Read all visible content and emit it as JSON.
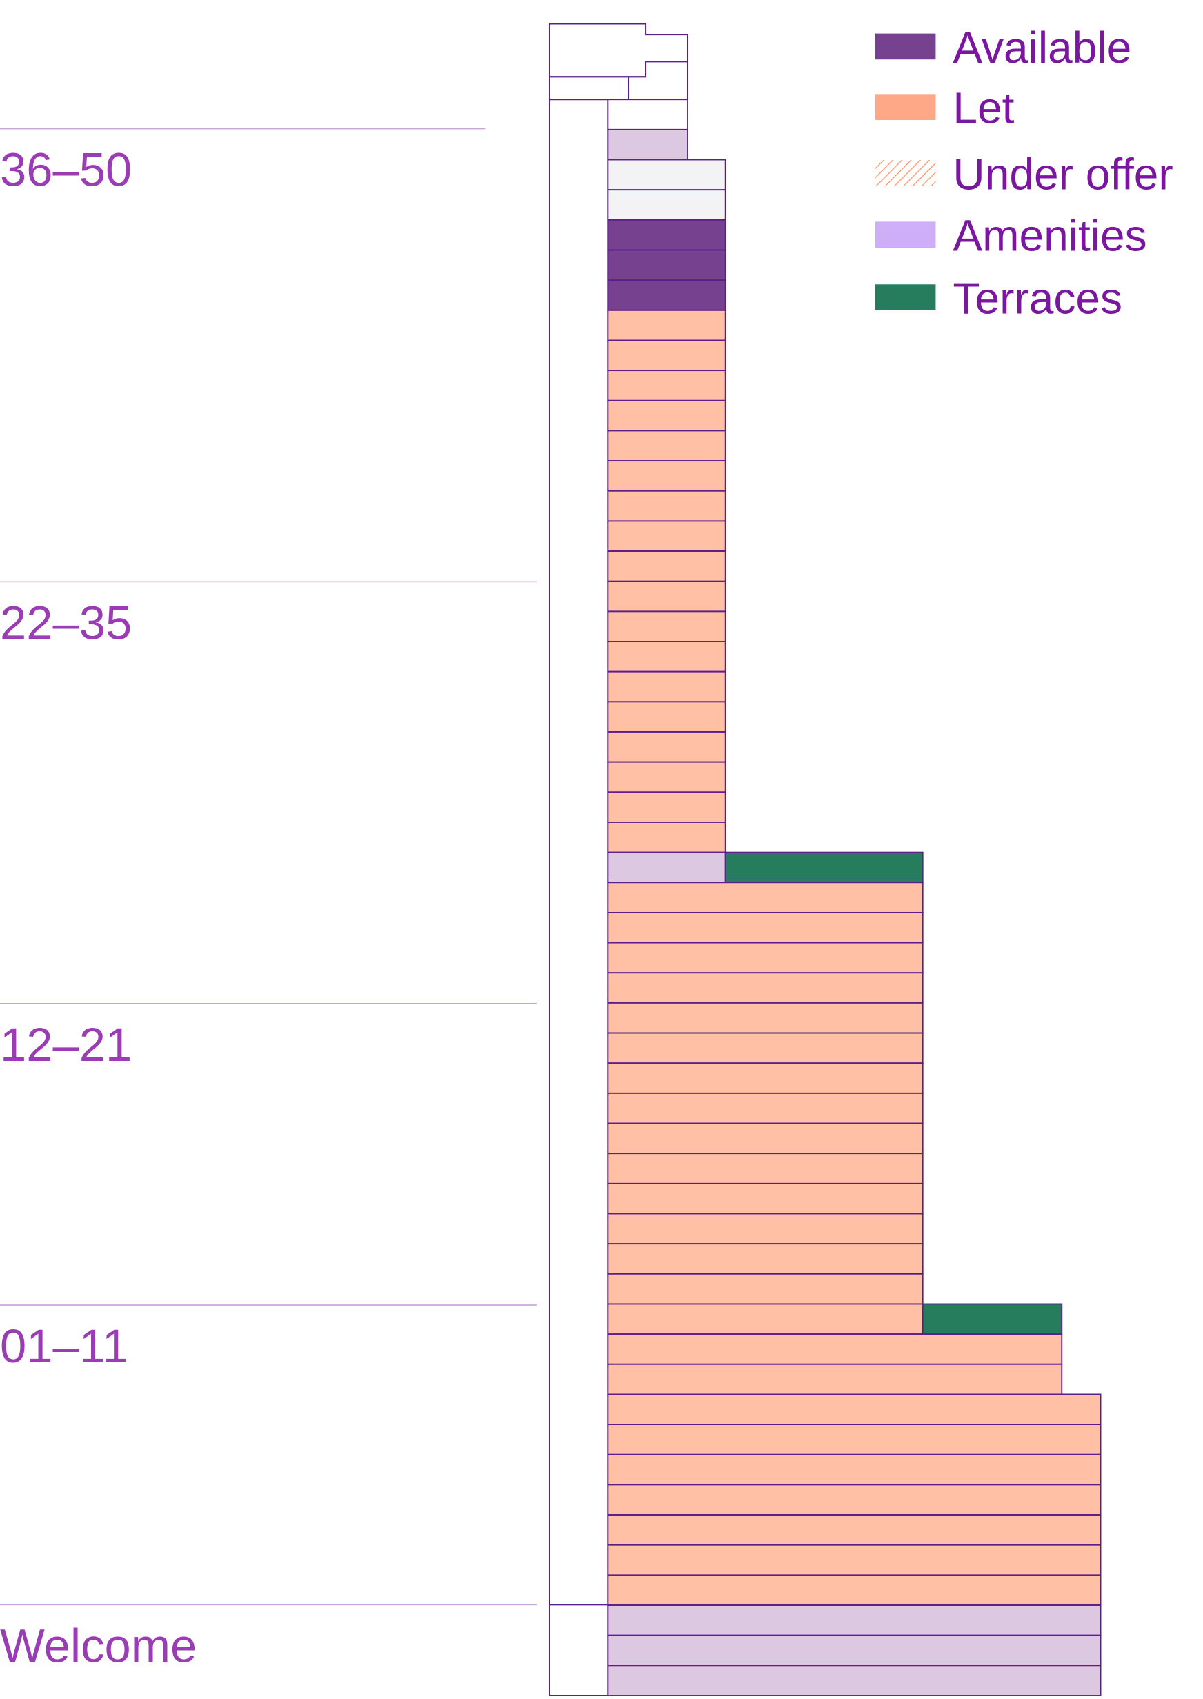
{
  "legend": {
    "items": [
      {
        "label": "Available",
        "color": "#76418f"
      },
      {
        "label": "Let",
        "color": "#ffa888"
      },
      {
        "label": "Under offer",
        "color": "#ff8a5c"
      },
      {
        "label": "Amenities",
        "color": "#cdaef7"
      },
      {
        "label": "Terraces",
        "color": "#267d5e"
      }
    ]
  },
  "zones": [
    {
      "label": "36–50"
    },
    {
      "label": "22–35"
    },
    {
      "label": "12–21"
    },
    {
      "label": "01–11"
    },
    {
      "label": "Welcome"
    }
  ]
}
